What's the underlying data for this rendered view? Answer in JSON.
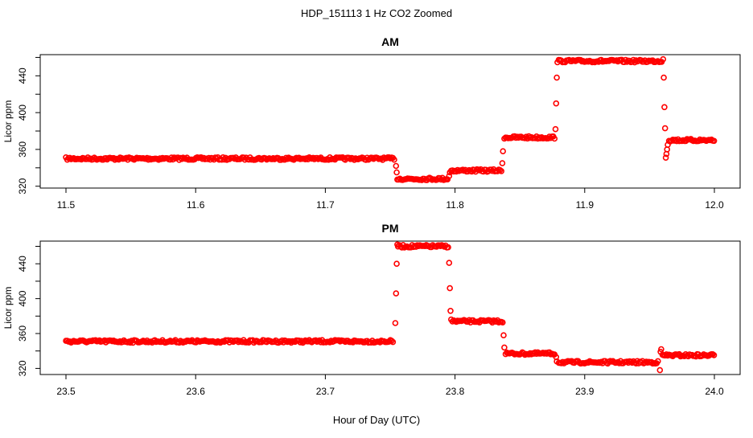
{
  "figure_title": "HDP_151113  1 Hz CO2 Zoomed",
  "xlabel": "Hour of Day (UTC)",
  "chart_data": [
    {
      "type": "scatter",
      "title": "AM",
      "ylabel": "Licor ppm",
      "xlim": [
        11.5,
        12.0
      ],
      "ylim": [
        318,
        463
      ],
      "x_ticks": [
        "11.5",
        "11.6",
        "11.7",
        "11.8",
        "11.9",
        "12.0"
      ],
      "y_ticks": [
        "320",
        "360",
        "400",
        "440"
      ],
      "color": "#ff0000",
      "segments": [
        {
          "x": [
            11.5,
            11.754
          ],
          "y": 350
        },
        {
          "x": [
            11.7555,
            11.795
          ],
          "y": 328
        },
        {
          "x": [
            11.797,
            11.836
          ],
          "y": 337
        },
        {
          "x": [
            11.838,
            11.877
          ],
          "y": 373
        },
        {
          "x": [
            11.879,
            11.96
          ],
          "y": 456
        },
        {
          "x": [
            11.965,
            12.0
          ],
          "y": 370
        }
      ],
      "transition_points": [
        {
          "x": 11.7545,
          "y": 342
        },
        {
          "x": 11.755,
          "y": 335
        },
        {
          "x": 11.7955,
          "y": 331
        },
        {
          "x": 11.796,
          "y": 335
        },
        {
          "x": 11.8365,
          "y": 345
        },
        {
          "x": 11.837,
          "y": 358
        },
        {
          "x": 11.8775,
          "y": 382
        },
        {
          "x": 11.878,
          "y": 410
        },
        {
          "x": 11.8785,
          "y": 438
        },
        {
          "x": 11.9605,
          "y": 458
        },
        {
          "x": 11.961,
          "y": 438
        },
        {
          "x": 11.9615,
          "y": 406
        },
        {
          "x": 11.962,
          "y": 383
        },
        {
          "x": 11.9625,
          "y": 351
        },
        {
          "x": 11.963,
          "y": 355
        },
        {
          "x": 11.9635,
          "y": 360
        },
        {
          "x": 11.964,
          "y": 365
        }
      ]
    },
    {
      "type": "scatter",
      "title": "PM",
      "ylabel": "Licor ppm",
      "xlim": [
        23.5,
        24.0
      ],
      "ylim": [
        313,
        466
      ],
      "x_ticks": [
        "23.5",
        "23.6",
        "23.7",
        "23.8",
        "23.9",
        "24.0"
      ],
      "y_ticks": [
        "320",
        "360",
        "400",
        "440"
      ],
      "color": "#ff0000",
      "segments": [
        {
          "x": [
            23.5,
            23.753
          ],
          "y": 351
        },
        {
          "x": [
            23.756,
            23.795
          ],
          "y": 460
        },
        {
          "x": [
            23.798,
            23.837
          ],
          "y": 374
        },
        {
          "x": [
            23.839,
            23.877
          ],
          "y": 337
        },
        {
          "x": [
            23.88,
            23.957
          ],
          "y": 327
        },
        {
          "x": [
            23.96,
            24.0
          ],
          "y": 335
        }
      ],
      "transition_points": [
        {
          "x": 23.754,
          "y": 372
        },
        {
          "x": 23.7545,
          "y": 406
        },
        {
          "x": 23.755,
          "y": 440
        },
        {
          "x": 23.7555,
          "y": 462
        },
        {
          "x": 23.7955,
          "y": 441
        },
        {
          "x": 23.796,
          "y": 412
        },
        {
          "x": 23.7965,
          "y": 386
        },
        {
          "x": 23.797,
          "y": 376
        },
        {
          "x": 23.8375,
          "y": 358
        },
        {
          "x": 23.838,
          "y": 344
        },
        {
          "x": 23.878,
          "y": 333
        },
        {
          "x": 23.8785,
          "y": 328
        },
        {
          "x": 23.958,
          "y": 318
        },
        {
          "x": 23.9585,
          "y": 339
        },
        {
          "x": 23.959,
          "y": 342
        }
      ]
    }
  ]
}
